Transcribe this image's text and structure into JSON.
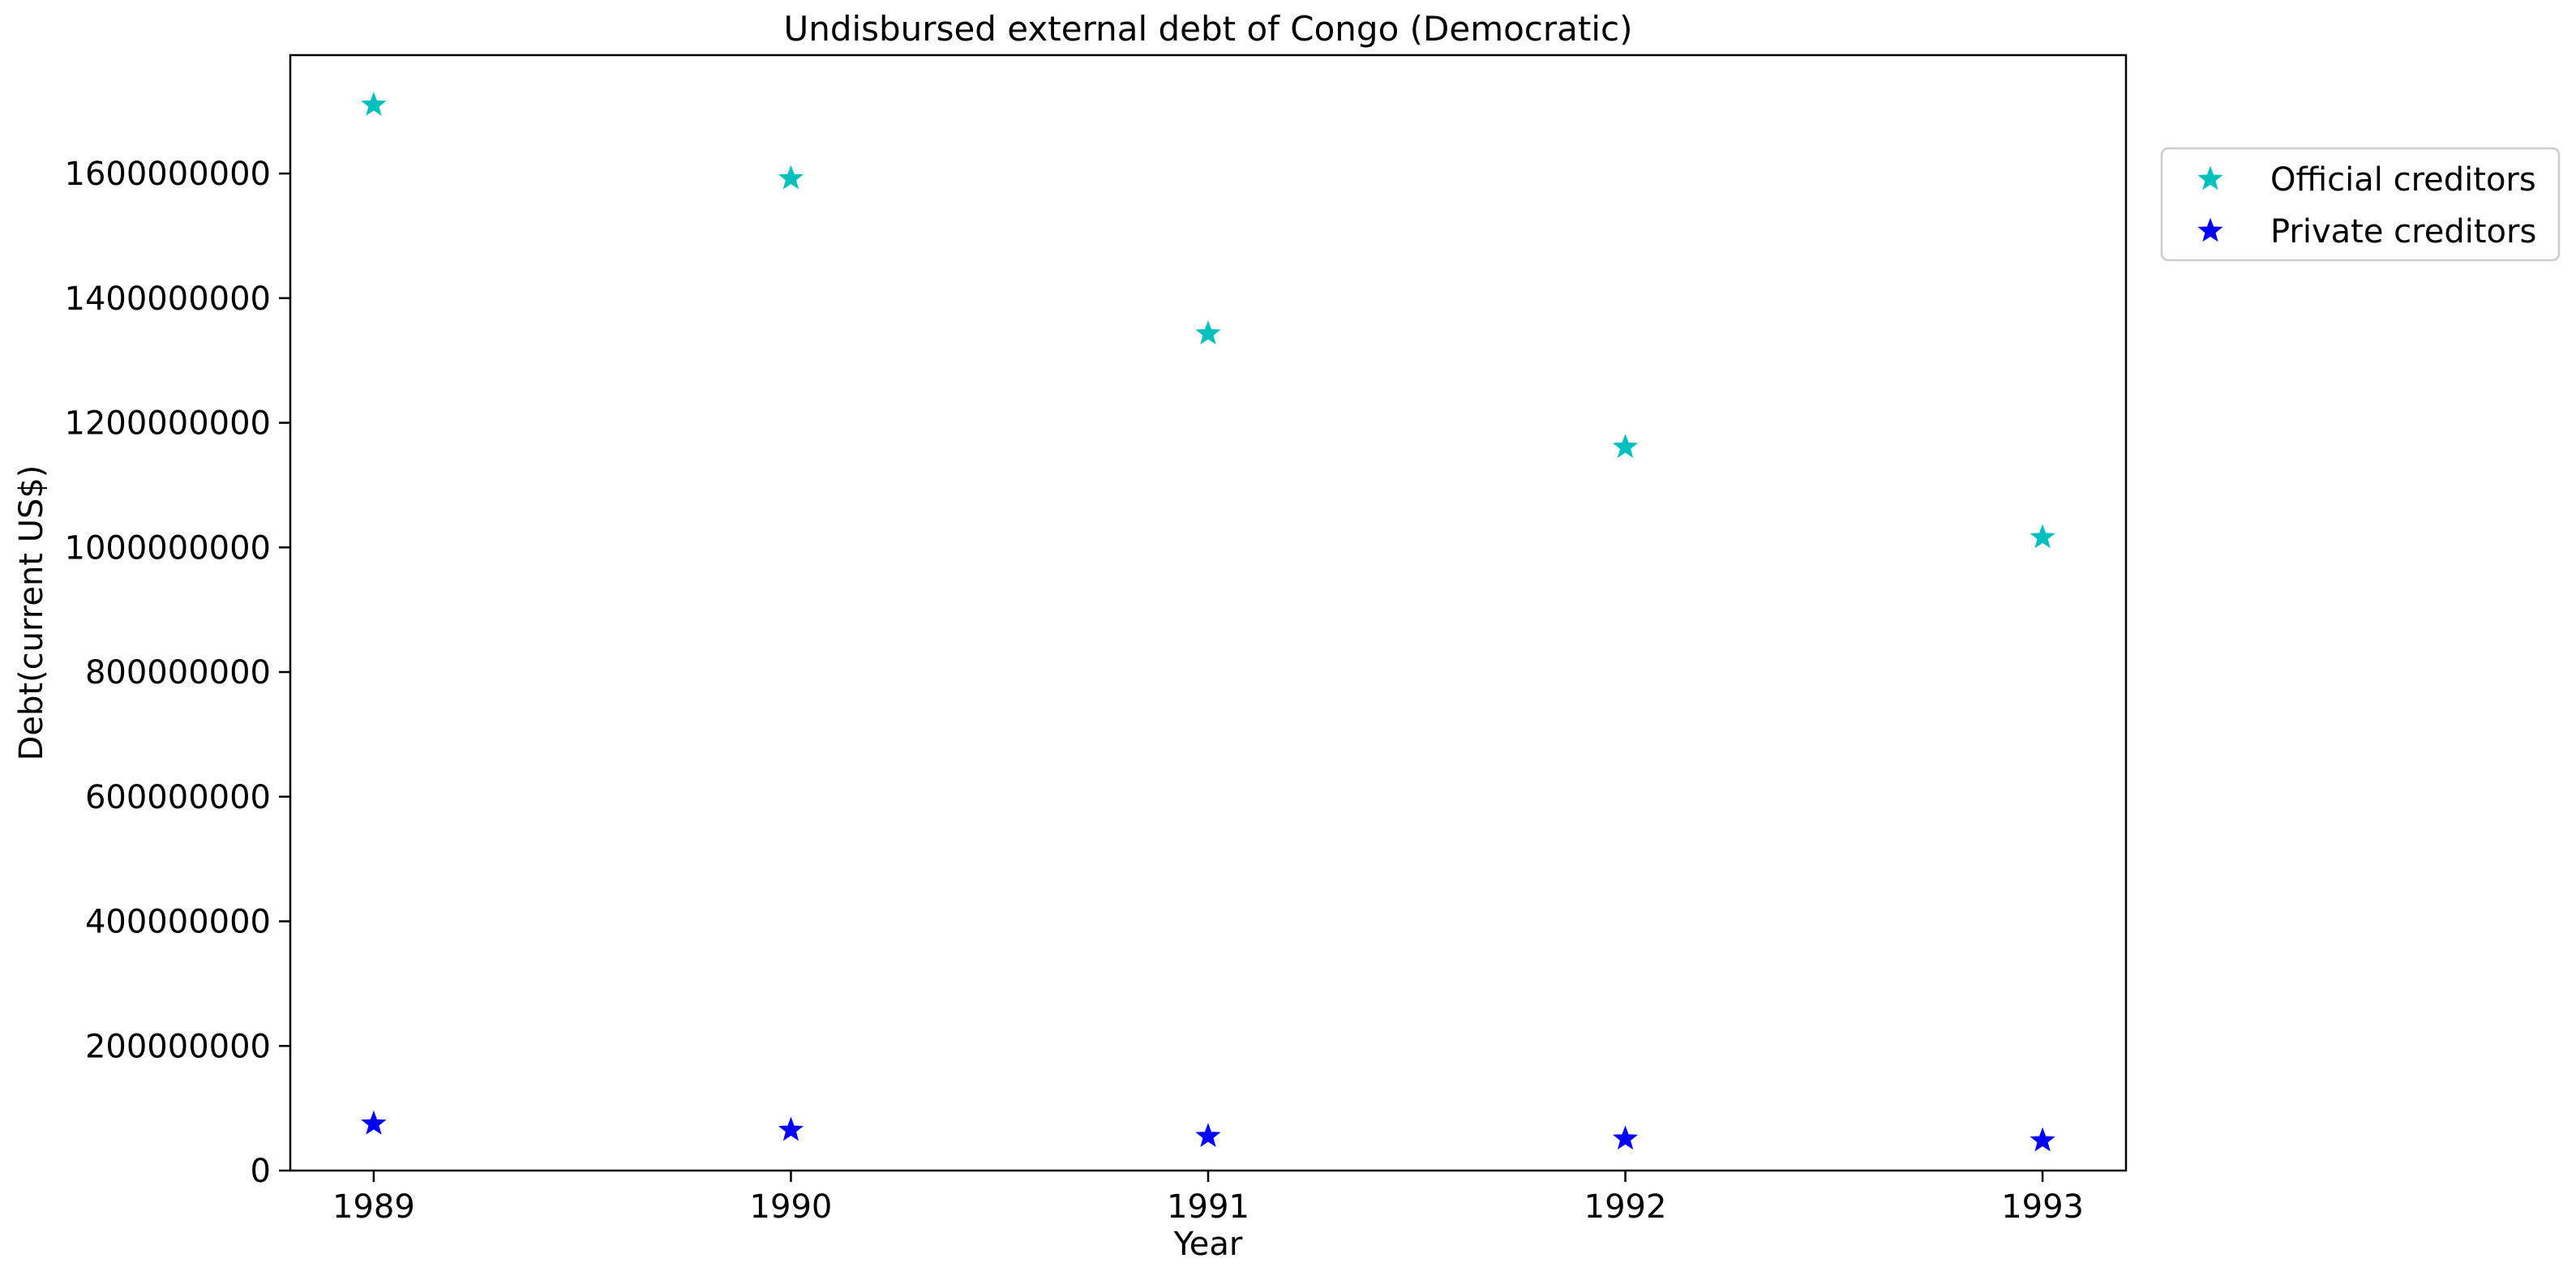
{
  "chart_data": {
    "type": "scatter",
    "title": "Undisbursed external debt of Congo (Democratic)",
    "xlabel": "Year",
    "ylabel": "Debt(current US$)",
    "x": [
      1989,
      1990,
      1991,
      1992,
      1993
    ],
    "xticks": [
      "1989",
      "1990",
      "1991",
      "1992",
      "1993"
    ],
    "xlim": [
      1988.8,
      1993.2
    ],
    "ylim": [
      0,
      1790000000
    ],
    "yticks": [
      0,
      200000000,
      400000000,
      600000000,
      800000000,
      1000000000,
      1200000000,
      1400000000,
      1600000000
    ],
    "ytick_labels": [
      "0",
      "200000000",
      "400000000",
      "600000000",
      "800000000",
      "1000000000",
      "1200000000",
      "1400000000",
      "1600000000"
    ],
    "series": [
      {
        "name": "Official creditors",
        "color": "#00bfbf",
        "marker": "star",
        "values": [
          1710000000,
          1592000000,
          1343000000,
          1161000000,
          1016000000
        ]
      },
      {
        "name": "Private creditors",
        "color": "#0000ff",
        "marker": "star",
        "values": [
          75000000,
          65000000,
          55000000,
          51000000,
          48000000
        ]
      }
    ],
    "grid": false,
    "legend_position": "outside-top-right"
  }
}
